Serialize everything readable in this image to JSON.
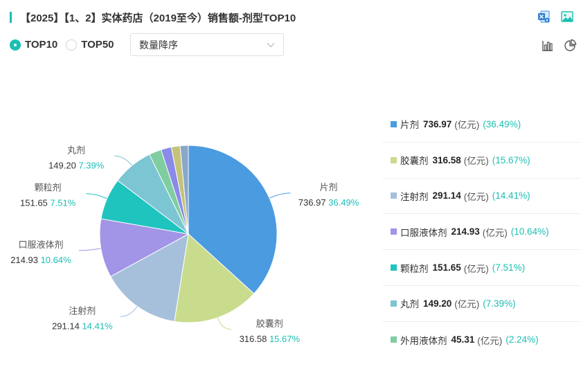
{
  "header": {
    "title": "【2025】【1、2】实体药店（2019至今）销售额-剂型TOP10"
  },
  "toolbar": {
    "top_icons": [
      "excel-export-icon",
      "image-export-icon"
    ],
    "view_icons": [
      "bar-chart-icon",
      "pie-chart-icon"
    ]
  },
  "filters": {
    "radios": [
      {
        "label": "TOP10",
        "checked": true
      },
      {
        "label": "TOP50",
        "checked": false
      }
    ],
    "sort_select": {
      "value": "数量降序"
    }
  },
  "colors": {
    "accent": "#1bbfb3",
    "slices": [
      "#4a9be0",
      "#c9dc8e",
      "#a6c0dc",
      "#a294e6",
      "#1fc4bf",
      "#7cc5d3",
      "#7fcda1",
      "#8c8ae8",
      "#c3c47a",
      "#8aa7c8"
    ]
  },
  "chart_data": {
    "type": "pie",
    "unit": "(亿元)",
    "slices": [
      {
        "name": "片剂",
        "value": 736.97,
        "value_label": "736.97",
        "pct": "36.49%"
      },
      {
        "name": "胶囊剂",
        "value": 316.58,
        "value_label": "316.58",
        "pct": "15.67%"
      },
      {
        "name": "注射剂",
        "value": 291.14,
        "value_label": "291.14",
        "pct": "14.41%"
      },
      {
        "name": "口服液体剂",
        "value": 214.93,
        "value_label": "214.93",
        "pct": "10.64%"
      },
      {
        "name": "颗粒剂",
        "value": 151.65,
        "value_label": "151.65",
        "pct": "7.51%"
      },
      {
        "name": "丸剂",
        "value": 149.2,
        "value_label": "149.20",
        "pct": "7.39%"
      },
      {
        "name": "外用液体剂",
        "value": 45.31,
        "value_label": "45.31",
        "pct": "2.24%"
      },
      {
        "value": 38
      },
      {
        "value": 32
      },
      {
        "value": 30
      }
    ],
    "labeled_count": 6,
    "legend_count": 7
  }
}
